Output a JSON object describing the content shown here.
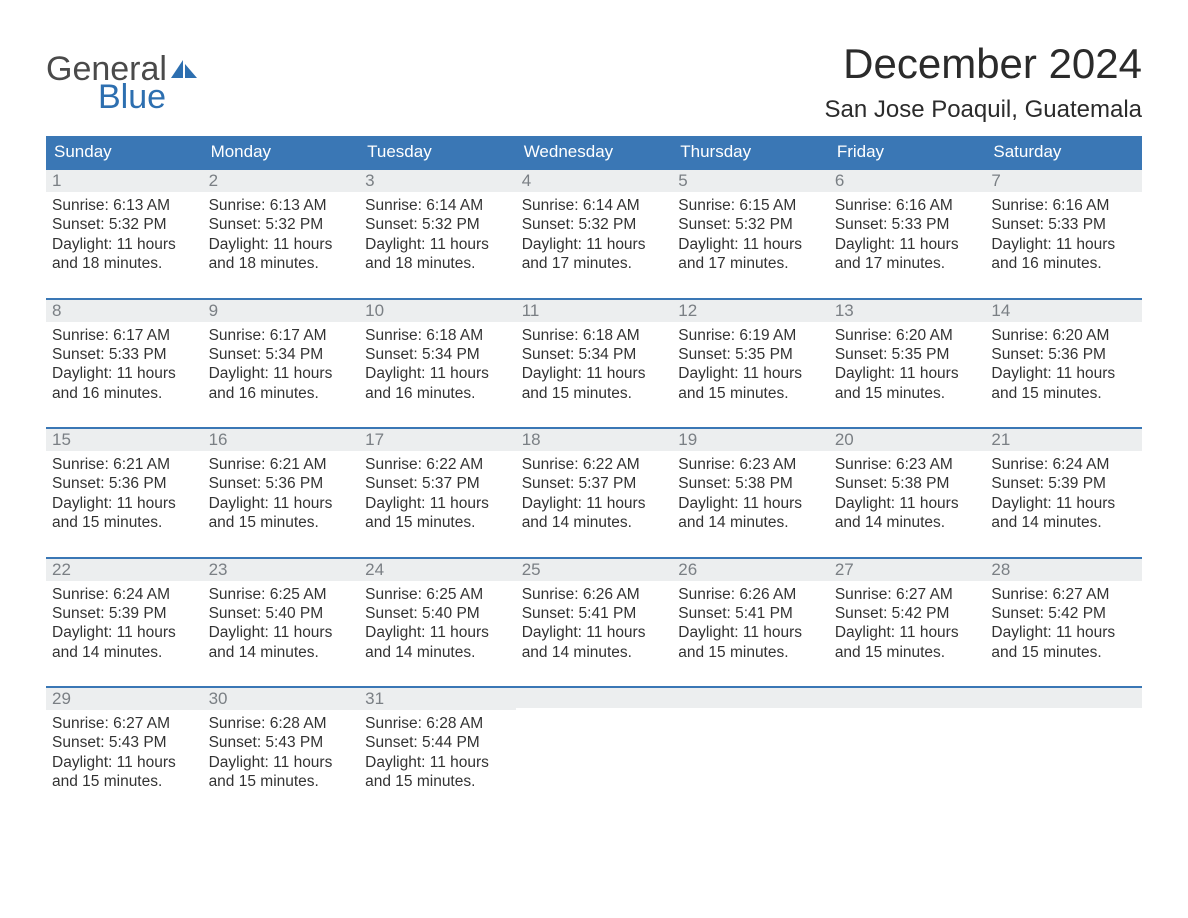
{
  "colors": {
    "header_bg": "#3a77b5",
    "header_text": "#ffffff",
    "daynum_bg": "#eceeef",
    "daynum_border": "#3a77b5",
    "daynum_text": "#7a7f84",
    "body_text": "#333333",
    "logo_gray": "#4a4a4a",
    "logo_blue": "#2d6fb0",
    "page_bg": "#ffffff"
  },
  "logo": {
    "word1": "General",
    "word2": "Blue"
  },
  "title": "December 2024",
  "location": "San Jose Poaquil, Guatemala",
  "weekdays": [
    "Sunday",
    "Monday",
    "Tuesday",
    "Wednesday",
    "Thursday",
    "Friday",
    "Saturday"
  ],
  "weeks": [
    [
      {
        "n": "1",
        "sr": "Sunrise: 6:13 AM",
        "ss": "Sunset: 5:32 PM",
        "d1": "Daylight: 11 hours",
        "d2": "and 18 minutes."
      },
      {
        "n": "2",
        "sr": "Sunrise: 6:13 AM",
        "ss": "Sunset: 5:32 PM",
        "d1": "Daylight: 11 hours",
        "d2": "and 18 minutes."
      },
      {
        "n": "3",
        "sr": "Sunrise: 6:14 AM",
        "ss": "Sunset: 5:32 PM",
        "d1": "Daylight: 11 hours",
        "d2": "and 18 minutes."
      },
      {
        "n": "4",
        "sr": "Sunrise: 6:14 AM",
        "ss": "Sunset: 5:32 PM",
        "d1": "Daylight: 11 hours",
        "d2": "and 17 minutes."
      },
      {
        "n": "5",
        "sr": "Sunrise: 6:15 AM",
        "ss": "Sunset: 5:32 PM",
        "d1": "Daylight: 11 hours",
        "d2": "and 17 minutes."
      },
      {
        "n": "6",
        "sr": "Sunrise: 6:16 AM",
        "ss": "Sunset: 5:33 PM",
        "d1": "Daylight: 11 hours",
        "d2": "and 17 minutes."
      },
      {
        "n": "7",
        "sr": "Sunrise: 6:16 AM",
        "ss": "Sunset: 5:33 PM",
        "d1": "Daylight: 11 hours",
        "d2": "and 16 minutes."
      }
    ],
    [
      {
        "n": "8",
        "sr": "Sunrise: 6:17 AM",
        "ss": "Sunset: 5:33 PM",
        "d1": "Daylight: 11 hours",
        "d2": "and 16 minutes."
      },
      {
        "n": "9",
        "sr": "Sunrise: 6:17 AM",
        "ss": "Sunset: 5:34 PM",
        "d1": "Daylight: 11 hours",
        "d2": "and 16 minutes."
      },
      {
        "n": "10",
        "sr": "Sunrise: 6:18 AM",
        "ss": "Sunset: 5:34 PM",
        "d1": "Daylight: 11 hours",
        "d2": "and 16 minutes."
      },
      {
        "n": "11",
        "sr": "Sunrise: 6:18 AM",
        "ss": "Sunset: 5:34 PM",
        "d1": "Daylight: 11 hours",
        "d2": "and 15 minutes."
      },
      {
        "n": "12",
        "sr": "Sunrise: 6:19 AM",
        "ss": "Sunset: 5:35 PM",
        "d1": "Daylight: 11 hours",
        "d2": "and 15 minutes."
      },
      {
        "n": "13",
        "sr": "Sunrise: 6:20 AM",
        "ss": "Sunset: 5:35 PM",
        "d1": "Daylight: 11 hours",
        "d2": "and 15 minutes."
      },
      {
        "n": "14",
        "sr": "Sunrise: 6:20 AM",
        "ss": "Sunset: 5:36 PM",
        "d1": "Daylight: 11 hours",
        "d2": "and 15 minutes."
      }
    ],
    [
      {
        "n": "15",
        "sr": "Sunrise: 6:21 AM",
        "ss": "Sunset: 5:36 PM",
        "d1": "Daylight: 11 hours",
        "d2": "and 15 minutes."
      },
      {
        "n": "16",
        "sr": "Sunrise: 6:21 AM",
        "ss": "Sunset: 5:36 PM",
        "d1": "Daylight: 11 hours",
        "d2": "and 15 minutes."
      },
      {
        "n": "17",
        "sr": "Sunrise: 6:22 AM",
        "ss": "Sunset: 5:37 PM",
        "d1": "Daylight: 11 hours",
        "d2": "and 15 minutes."
      },
      {
        "n": "18",
        "sr": "Sunrise: 6:22 AM",
        "ss": "Sunset: 5:37 PM",
        "d1": "Daylight: 11 hours",
        "d2": "and 14 minutes."
      },
      {
        "n": "19",
        "sr": "Sunrise: 6:23 AM",
        "ss": "Sunset: 5:38 PM",
        "d1": "Daylight: 11 hours",
        "d2": "and 14 minutes."
      },
      {
        "n": "20",
        "sr": "Sunrise: 6:23 AM",
        "ss": "Sunset: 5:38 PM",
        "d1": "Daylight: 11 hours",
        "d2": "and 14 minutes."
      },
      {
        "n": "21",
        "sr": "Sunrise: 6:24 AM",
        "ss": "Sunset: 5:39 PM",
        "d1": "Daylight: 11 hours",
        "d2": "and 14 minutes."
      }
    ],
    [
      {
        "n": "22",
        "sr": "Sunrise: 6:24 AM",
        "ss": "Sunset: 5:39 PM",
        "d1": "Daylight: 11 hours",
        "d2": "and 14 minutes."
      },
      {
        "n": "23",
        "sr": "Sunrise: 6:25 AM",
        "ss": "Sunset: 5:40 PM",
        "d1": "Daylight: 11 hours",
        "d2": "and 14 minutes."
      },
      {
        "n": "24",
        "sr": "Sunrise: 6:25 AM",
        "ss": "Sunset: 5:40 PM",
        "d1": "Daylight: 11 hours",
        "d2": "and 14 minutes."
      },
      {
        "n": "25",
        "sr": "Sunrise: 6:26 AM",
        "ss": "Sunset: 5:41 PM",
        "d1": "Daylight: 11 hours",
        "d2": "and 14 minutes."
      },
      {
        "n": "26",
        "sr": "Sunrise: 6:26 AM",
        "ss": "Sunset: 5:41 PM",
        "d1": "Daylight: 11 hours",
        "d2": "and 15 minutes."
      },
      {
        "n": "27",
        "sr": "Sunrise: 6:27 AM",
        "ss": "Sunset: 5:42 PM",
        "d1": "Daylight: 11 hours",
        "d2": "and 15 minutes."
      },
      {
        "n": "28",
        "sr": "Sunrise: 6:27 AM",
        "ss": "Sunset: 5:42 PM",
        "d1": "Daylight: 11 hours",
        "d2": "and 15 minutes."
      }
    ],
    [
      {
        "n": "29",
        "sr": "Sunrise: 6:27 AM",
        "ss": "Sunset: 5:43 PM",
        "d1": "Daylight: 11 hours",
        "d2": "and 15 minutes."
      },
      {
        "n": "30",
        "sr": "Sunrise: 6:28 AM",
        "ss": "Sunset: 5:43 PM",
        "d1": "Daylight: 11 hours",
        "d2": "and 15 minutes."
      },
      {
        "n": "31",
        "sr": "Sunrise: 6:28 AM",
        "ss": "Sunset: 5:44 PM",
        "d1": "Daylight: 11 hours",
        "d2": "and 15 minutes."
      },
      {
        "n": "",
        "sr": "",
        "ss": "",
        "d1": "",
        "d2": ""
      },
      {
        "n": "",
        "sr": "",
        "ss": "",
        "d1": "",
        "d2": ""
      },
      {
        "n": "",
        "sr": "",
        "ss": "",
        "d1": "",
        "d2": ""
      },
      {
        "n": "",
        "sr": "",
        "ss": "",
        "d1": "",
        "d2": ""
      }
    ]
  ]
}
